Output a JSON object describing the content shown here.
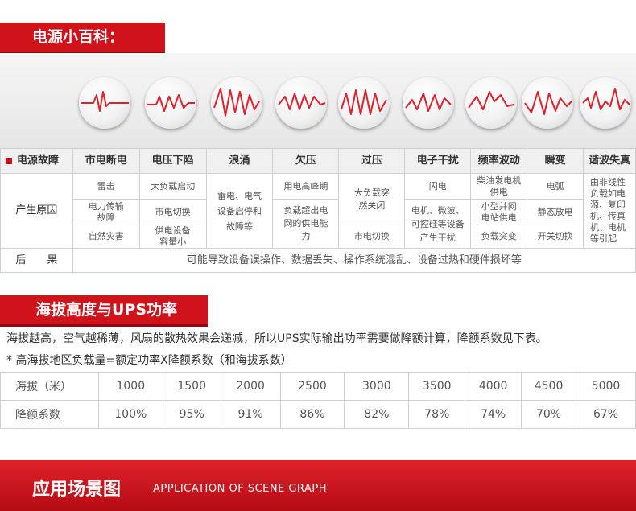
{
  "section1": {
    "title": "电源小百科："
  },
  "fault_table": {
    "header": [
      "电源故障",
      "市电断电",
      "电压下陷",
      "浪涌",
      "欠压",
      "过压",
      "电子干扰",
      "频率波动",
      "瞬变",
      "谐波失真"
    ],
    "cause_label": "产生原因",
    "causes": {
      "outage": [
        "雷击",
        "电力传输故障",
        "自然灾害"
      ],
      "sag": [
        "大负载启动",
        "市电切换",
        "供电设备容量小"
      ],
      "surge": "雷电、电气设备启停和故障等",
      "under": [
        "用电高峰期",
        "负载超出电网的供电能力"
      ],
      "over": [
        "大负载突然关闭",
        "市电切换"
      ],
      "noise": [
        "闪电",
        "电机、微波、可控硅等设备产生干扰"
      ],
      "freq": [
        "柴油发电机供电",
        "小型并网电站供电",
        "负载突变"
      ],
      "transient": [
        "电弧",
        "静态放电",
        "开关切换"
      ],
      "harmonic": "由非线性负载如电源、复印机、传真机、电机等引起"
    },
    "result_label": "后　　果",
    "result_text": "可能导致设备误操作、数据丢失、操作系统混乱、设备过热和硬件损坏等"
  },
  "section2": {
    "title": "海拔高度与UPS功率",
    "para1": "海拔越高，空气越稀薄，风扇的散热效果会递减，所以UPS实际输出功率需要做降额计算，降额系数见下表。",
    "para2": "* 高海拔地区负载量=额定功率X降额系数（和海拔系数）"
  },
  "altitude_table": {
    "row1_label": "海拔（米）",
    "altitudes": [
      "1000",
      "1500",
      "2000",
      "2500",
      "3000",
      "3500",
      "4000",
      "4500",
      "5000"
    ],
    "row2_label": "降额系数",
    "factors": [
      "100%",
      "95%",
      "91%",
      "86%",
      "82%",
      "78%",
      "74%",
      "70%",
      "67%"
    ]
  },
  "section3": {
    "title": "应用场景图",
    "subtitle": "APPLICATION OF SCENE GRAPH"
  },
  "colors": {
    "brand_red": "#d0121b",
    "wave_red": "#e0202a"
  }
}
